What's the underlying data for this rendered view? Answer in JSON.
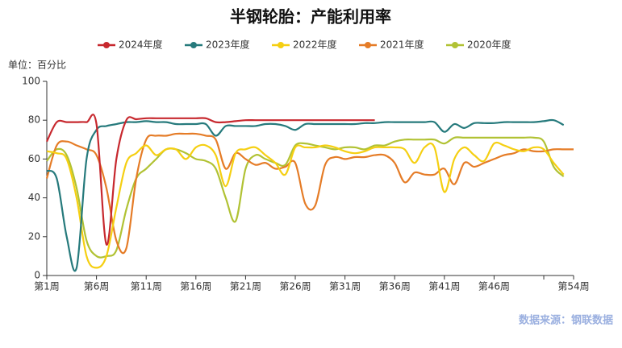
{
  "chart_data": {
    "type": "line",
    "title": "半钢轮胎：产能利用率",
    "unit": "单位：百分比",
    "source": "数据来源：钢联数据",
    "categories": [
      "第1周",
      null,
      null,
      null,
      null,
      "第6周",
      null,
      null,
      null,
      null,
      "第11周",
      null,
      null,
      null,
      null,
      "第16周",
      null,
      null,
      null,
      null,
      "第21周",
      null,
      null,
      null,
      null,
      "第26周",
      null,
      null,
      null,
      null,
      "第31周",
      null,
      null,
      null,
      null,
      "第36周",
      null,
      null,
      null,
      null,
      "第41周",
      null,
      null,
      null,
      null,
      "第46周",
      null,
      null,
      null,
      null,
      null,
      null,
      null,
      "第54周"
    ],
    "ylim": [
      0,
      100
    ],
    "yticks": [
      0,
      20,
      40,
      60,
      80,
      100
    ],
    "series": [
      {
        "name": "2024年度",
        "color": "#c7282e",
        "values": [
          69,
          79,
          79,
          79,
          79,
          78,
          16,
          60,
          80,
          80.5,
          81,
          81,
          81,
          81,
          81,
          81,
          81,
          79,
          79,
          79.5,
          80,
          80,
          80,
          80,
          80,
          80,
          80,
          80,
          80,
          80,
          80,
          80,
          80,
          80,
          null,
          null,
          null,
          null,
          null,
          null,
          null,
          null,
          null,
          null,
          null,
          null,
          null,
          null,
          null,
          null,
          null,
          null,
          null,
          null
        ]
      },
      {
        "name": "2023年度",
        "color": "#267a7c",
        "values": [
          54,
          50,
          20,
          4,
          60,
          75,
          77,
          78,
          79,
          79,
          79.5,
          79,
          79,
          78,
          78,
          78,
          78,
          72,
          77,
          77,
          77,
          77,
          78,
          78,
          77,
          75,
          78,
          78,
          78,
          78,
          78,
          78,
          78.5,
          78.5,
          79,
          79,
          79,
          79,
          79,
          79,
          74,
          78,
          76,
          78.5,
          78.5,
          78.5,
          79,
          79,
          79,
          79,
          79.5,
          80,
          77.5,
          null
        ]
      },
      {
        "name": "2022年度",
        "color": "#f5cf12",
        "values": [
          64,
          63,
          60,
          40,
          10,
          4,
          10,
          35,
          58,
          63,
          67,
          62,
          65,
          65,
          60,
          66,
          67,
          62,
          46,
          63,
          65,
          66,
          62,
          58,
          52,
          66,
          66,
          66,
          67,
          66,
          64,
          63,
          64,
          66,
          66,
          66,
          65,
          58,
          66,
          66,
          43,
          60,
          66,
          62,
          59,
          68,
          67,
          65,
          64,
          66,
          65,
          58,
          52,
          null
        ]
      },
      {
        "name": "2021年度",
        "color": "#e57c27",
        "values": [
          50,
          67,
          69,
          67,
          65,
          62,
          45,
          18,
          14,
          50,
          70,
          72,
          72,
          73,
          73,
          73,
          72,
          70,
          55,
          63,
          60,
          57,
          58,
          55,
          56,
          58,
          37,
          36,
          57,
          61,
          60,
          61,
          61,
          62,
          62,
          58,
          48,
          53,
          52,
          52,
          55,
          47,
          58,
          56,
          58,
          60,
          62,
          63,
          65,
          64,
          64,
          65,
          65,
          65
        ]
      },
      {
        "name": "2020年度",
        "color": "#b1c234",
        "values": [
          59,
          65,
          62,
          45,
          18,
          10,
          10,
          13,
          34,
          50,
          55,
          60,
          65,
          65,
          63,
          60,
          59,
          55,
          40,
          28,
          55,
          62,
          60,
          58,
          57,
          67,
          68,
          67,
          66,
          65,
          66,
          66,
          65,
          67,
          67,
          69,
          70,
          70,
          70,
          70,
          68,
          71,
          71,
          71,
          71,
          71,
          71,
          71,
          71,
          71,
          69,
          56,
          51,
          null
        ]
      }
    ]
  }
}
